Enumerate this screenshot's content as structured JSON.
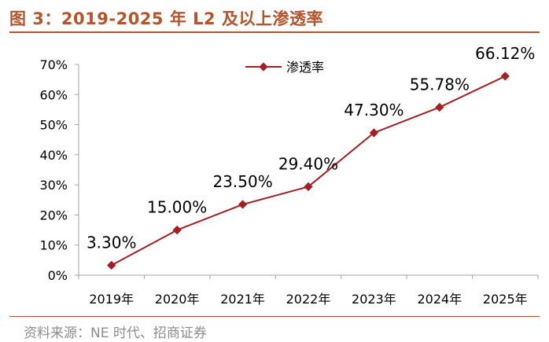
{
  "header": {
    "title": "图 3：2019-2025 年 L2 及以上渗透率"
  },
  "footer": {
    "source": "资料来源：NE 时代、招商证券"
  },
  "colors": {
    "accent": "#b5532a",
    "series": "#a51e22",
    "axis": "#a6a6a6"
  },
  "chart_data": {
    "type": "line",
    "title": "2019-2025 年 L2 及以上渗透率",
    "categories": [
      "2019年",
      "2020年",
      "2021年",
      "2022年",
      "2023年",
      "2024年",
      "2025年"
    ],
    "series": [
      {
        "name": "渗透率",
        "values": [
          3.3,
          15.0,
          23.5,
          29.4,
          47.3,
          55.78,
          66.12
        ],
        "labels": [
          "3.30%",
          "15.00%",
          "23.50%",
          "29.40%",
          "47.30%",
          "55.78%",
          "66.12%"
        ]
      }
    ],
    "ylim": [
      0,
      70
    ],
    "yticks": [
      "0%",
      "10%",
      "20%",
      "30%",
      "40%",
      "50%",
      "60%",
      "70%"
    ],
    "xlabel": "",
    "ylabel": "",
    "grid": false,
    "legend_position": "top-center"
  }
}
